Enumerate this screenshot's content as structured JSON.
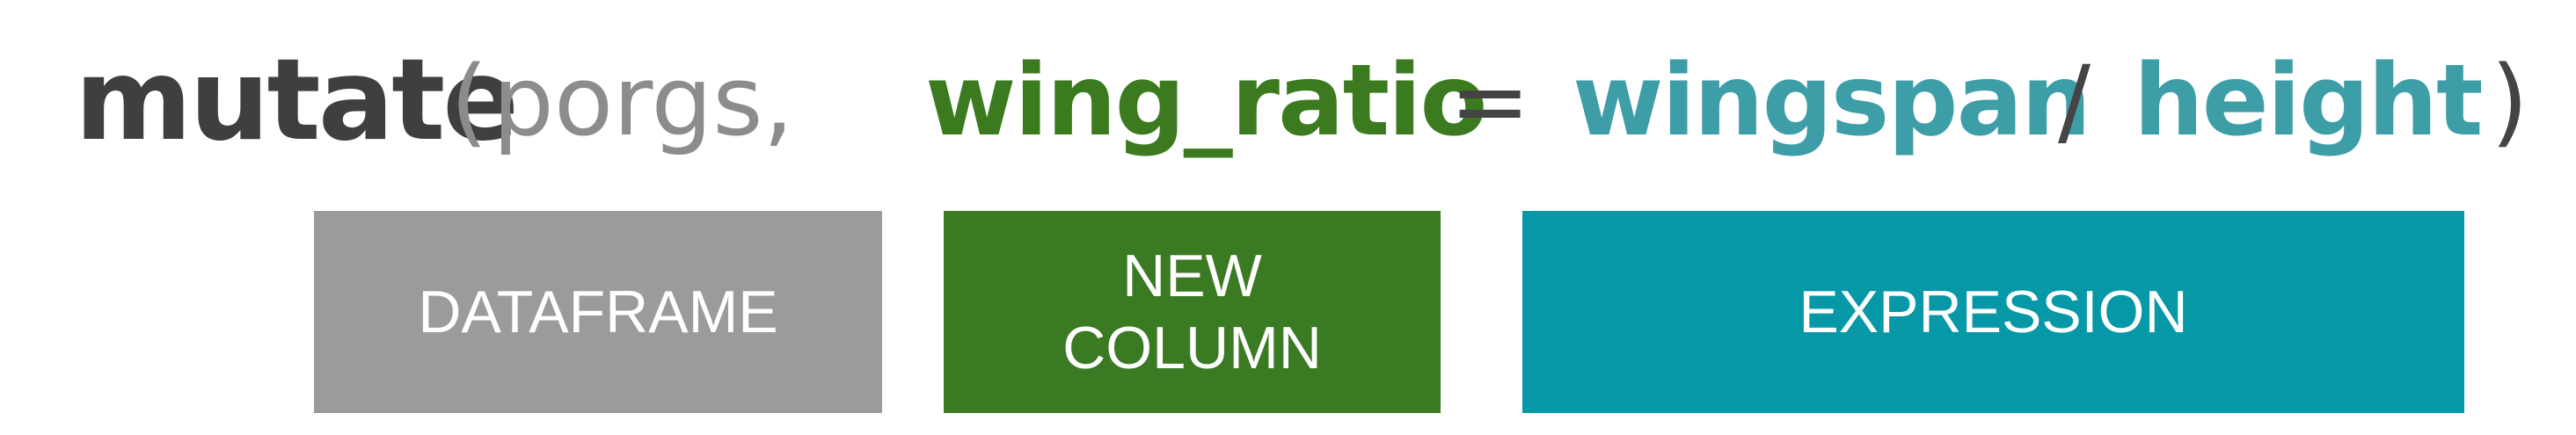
{
  "code": {
    "function_name": "mutate",
    "open_paren": "(",
    "dataframe_arg": "porgs,",
    "new_column": "wing_ratio",
    "equals": "=",
    "expression_left": "wingspan",
    "divide": "/",
    "expression_right": "height",
    "close_paren": ")"
  },
  "labels": {
    "dataframe": "DATAFRAME",
    "new_column": "NEW\nCOLUMN",
    "expression": "EXPRESSION"
  },
  "colors": {
    "function": "#3f3f3f",
    "dataframe": "#9b9b9b",
    "new_column": "#3a7a22",
    "expression": "#0698a6"
  }
}
